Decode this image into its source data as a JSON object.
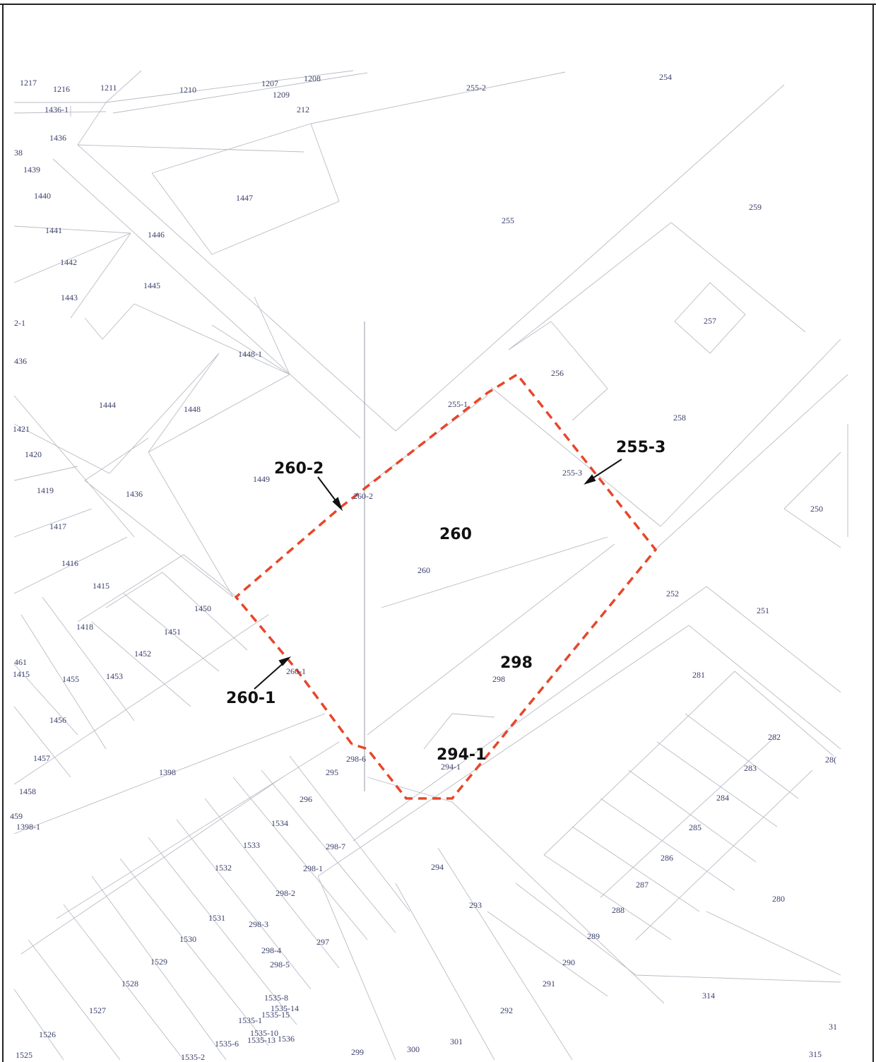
{
  "map": {
    "boundary_color": "#e8462a",
    "frame_color": "#222222",
    "line_color": "#b9bcc4",
    "label_color": "#3a3f6a"
  },
  "callouts": {
    "c260": "260",
    "c260_2": "260-2",
    "c255_3": "255-3",
    "c260_1": "260-1",
    "c298": "298",
    "c294_1": "294-1"
  },
  "labels": {
    "l1217": "1217",
    "l1216": "1216",
    "l1211": "1211",
    "l1210": "1210",
    "l1207": "1207",
    "l1208": "1208",
    "l1209": "1209",
    "l212": "212",
    "l255_2": "255-2",
    "l254": "254",
    "l1436_1": "1436-1",
    "l1436a": "1436",
    "l38": "38",
    "l1439": "1439",
    "l1440": "1440",
    "l1447": "1447",
    "l255": "255",
    "l259": "259",
    "l1441": "1441",
    "l1446": "1446",
    "l1442": "1442",
    "l1445": "1445",
    "l1443": "1443",
    "l2_1": "2-1",
    "l257": "257",
    "l436": "436",
    "l1448_1": "1448-1",
    "l256": "256",
    "l255_1": "255-1",
    "l1444": "1444",
    "l1448": "1448",
    "l258": "258",
    "l1421": "1421",
    "l1420": "1420",
    "l1449": "1449",
    "l260_2s": "260-2",
    "l255_3s": "255-3",
    "l1419": "1419",
    "l1436b": "1436",
    "l250": "250",
    "l1417": "1417",
    "l1416": "1416",
    "l260s": "260",
    "l1415": "1415",
    "l252": "252",
    "l1450": "1450",
    "l251": "251",
    "l1418": "1418",
    "l1451": "1451",
    "l1452": "1452",
    "l461": "461",
    "l1415b": "1415",
    "l1455": "1455",
    "l1453": "1453",
    "l260_1s": "260-1",
    "l298s": "298",
    "l281": "281",
    "l1456": "1456",
    "l282": "282",
    "l1457": "1457",
    "l298_6": "298-6",
    "l294_1s": "294-1",
    "l28x": "28(",
    "l1398": "1398",
    "l295": "295",
    "l283": "283",
    "l1458": "1458",
    "l296": "296",
    "l284": "284",
    "l459": "459",
    "l1398_1": "1398-1",
    "l1534": "1534",
    "l285": "285",
    "l1533": "1533",
    "l298_7": "298-7",
    "l286": "286",
    "l1532": "1532",
    "l298_1": "298-1",
    "l294": "294",
    "l287": "287",
    "l298_2": "298-2",
    "l280": "280",
    "l293": "293",
    "l288": "288",
    "l1531": "1531",
    "l298_3": "298-3",
    "l1530": "1530",
    "l297": "297",
    "l289": "289",
    "l298_4": "298-4",
    "l1529": "1529",
    "l298_5": "298-5",
    "l290": "290",
    "l1528": "1528",
    "l291": "291",
    "l314": "314",
    "l1535_8": "1535-8",
    "l1527": "1527",
    "l1535_14": "1535-14",
    "l1535_15": "1535-15",
    "l292": "292",
    "l1535_1": "1535-1",
    "l1526": "1526",
    "l1535_10": "1535-10",
    "l1535_13": "1535-13",
    "l1536": "1536",
    "l301": "301",
    "l31": "31",
    "l1535_6": "1535-6",
    "l1525": "1525",
    "l1535_2": "1535-2",
    "l299": "299",
    "l300": "300",
    "l315": "315"
  }
}
